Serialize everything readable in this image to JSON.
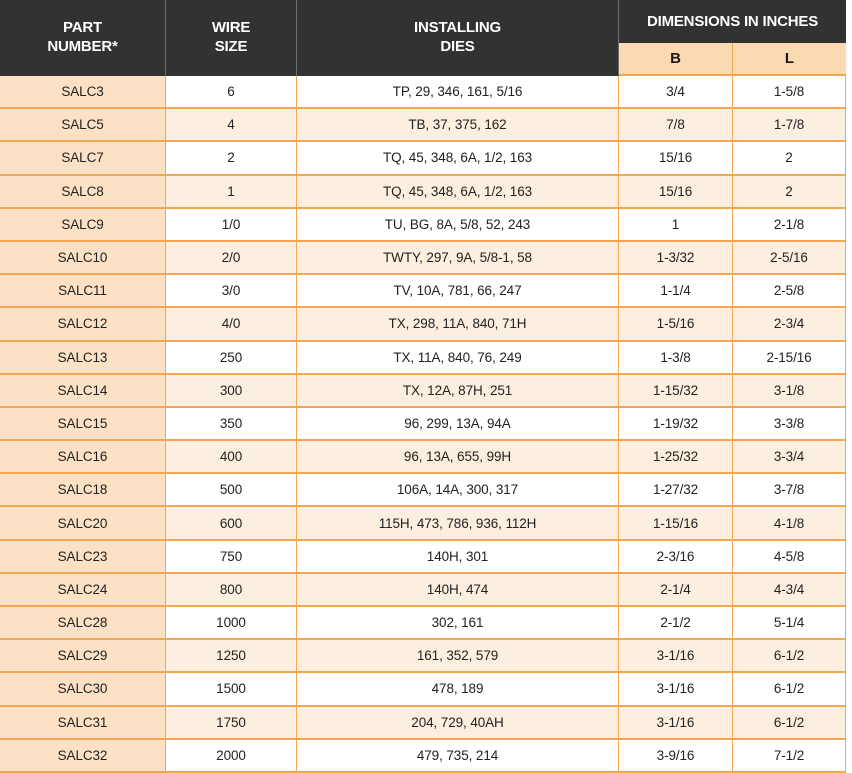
{
  "colors": {
    "header_bg": "#323232",
    "header_divider": "#6e6e6e",
    "header_text": "#ffffff",
    "border_orange": "#f5a653",
    "part_col_bg": "#fce1c4",
    "subheader_bg": "#fbd9b2",
    "row_alt_bg": "#fdefdf",
    "row_bg": "#ffffff",
    "cell_text": "#222222",
    "subheader_text": "#1a1a1a"
  },
  "header": {
    "part": [
      "PART",
      "NUMBER*"
    ],
    "wire": [
      "WIRE",
      "SIZE"
    ],
    "dies": [
      "INSTALLING",
      "DIES"
    ],
    "dimensions_group": "DIMENSIONS IN INCHES",
    "sub_b": "B",
    "sub_l": "L"
  },
  "table": {
    "rows": [
      {
        "part": "SALC3",
        "wire": "6",
        "dies": "TP, 29, 346, 161, 5/16",
        "b": "3/4",
        "l": "1-5/8"
      },
      {
        "part": "SALC5",
        "wire": "4",
        "dies": "TB, 37, 375, 162",
        "b": "7/8",
        "l": "1-7/8"
      },
      {
        "part": "SALC7",
        "wire": "2",
        "dies": "TQ, 45, 348, 6A, 1/2, 163",
        "b": "15/16",
        "l": "2"
      },
      {
        "part": "SALC8",
        "wire": "1",
        "dies": "TQ, 45, 348, 6A, 1/2, 163",
        "b": "15/16",
        "l": "2"
      },
      {
        "part": "SALC9",
        "wire": "1/0",
        "dies": "TU, BG, 8A, 5/8, 52, 243",
        "b": "1",
        "l": "2-1/8"
      },
      {
        "part": "SALC10",
        "wire": "2/0",
        "dies": "TWTY, 297, 9A, 5/8-1, 58",
        "b": "1-3/32",
        "l": "2-5/16"
      },
      {
        "part": "SALC11",
        "wire": "3/0",
        "dies": "TV, 10A, 781, 66, 247",
        "b": "1-1/4",
        "l": "2-5/8"
      },
      {
        "part": "SALC12",
        "wire": "4/0",
        "dies": "TX, 298, 11A, 840, 71H",
        "b": "1-5/16",
        "l": "2-3/4"
      },
      {
        "part": "SALC13",
        "wire": "250",
        "dies": "TX, 11A, 840, 76, 249",
        "b": "1-3/8",
        "l": "2-15/16"
      },
      {
        "part": "SALC14",
        "wire": "300",
        "dies": "TX, 12A, 87H, 251",
        "b": "1-15/32",
        "l": "3-1/8"
      },
      {
        "part": "SALC15",
        "wire": "350",
        "dies": "96, 299, 13A, 94A",
        "b": "1-19/32",
        "l": "3-3/8"
      },
      {
        "part": "SALC16",
        "wire": "400",
        "dies": "96, 13A, 655, 99H",
        "b": "1-25/32",
        "l": "3-3/4"
      },
      {
        "part": "SALC18",
        "wire": "500",
        "dies": "106A, 14A, 300, 317",
        "b": "1-27/32",
        "l": "3-7/8"
      },
      {
        "part": "SALC20",
        "wire": "600",
        "dies": "115H, 473, 786, 936, 112H",
        "b": "1-15/16",
        "l": "4-1/8"
      },
      {
        "part": "SALC23",
        "wire": "750",
        "dies": "140H, 301",
        "b": "2-3/16",
        "l": "4-5/8"
      },
      {
        "part": "SALC24",
        "wire": "800",
        "dies": "140H, 474",
        "b": "2-1/4",
        "l": "4-3/4"
      },
      {
        "part": "SALC28",
        "wire": "1000",
        "dies": "302, 161",
        "b": "2-1/2",
        "l": "5-1/4"
      },
      {
        "part": "SALC29",
        "wire": "1250",
        "dies": "161, 352, 579",
        "b": "3-1/16",
        "l": "6-1/2"
      },
      {
        "part": "SALC30",
        "wire": "1500",
        "dies": "478, 189",
        "b": "3-1/16",
        "l": "6-1/2"
      },
      {
        "part": "SALC31",
        "wire": "1750",
        "dies": "204, 729, 40AH",
        "b": "3-1/16",
        "l": "6-1/2"
      },
      {
        "part": "SALC32",
        "wire": "2000",
        "dies": "479, 735, 214",
        "b": "3-9/16",
        "l": "7-1/2"
      }
    ]
  }
}
